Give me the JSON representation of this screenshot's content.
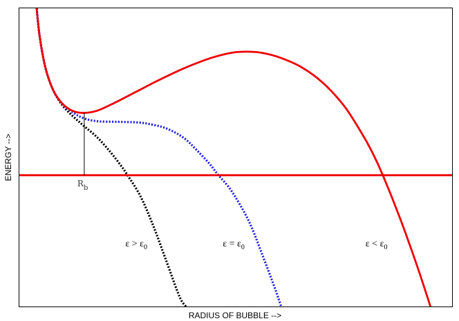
{
  "chart_data": {
    "type": "line",
    "xlabel": "RADIUS OF BUBBLE -->",
    "ylabel": "ENERGY -->",
    "ticks": "none",
    "grid": false,
    "series": [
      {
        "id": "eps_less",
        "name": "ε < ε",
        "name_subscript": "0",
        "color": "#ee0000",
        "style": "solid",
        "points": [
          [
            0.04,
            3.0
          ],
          [
            0.046,
            2.55
          ],
          [
            0.055,
            2.12
          ],
          [
            0.065,
            1.8
          ],
          [
            0.08,
            1.5
          ],
          [
            0.1,
            1.28
          ],
          [
            0.125,
            1.15
          ],
          [
            0.15,
            1.12
          ],
          [
            0.18,
            1.16
          ],
          [
            0.22,
            1.3
          ],
          [
            0.27,
            1.5
          ],
          [
            0.32,
            1.7
          ],
          [
            0.38,
            1.92
          ],
          [
            0.44,
            2.1
          ],
          [
            0.49,
            2.2
          ],
          [
            0.525,
            2.22
          ],
          [
            0.56,
            2.2
          ],
          [
            0.6,
            2.12
          ],
          [
            0.65,
            1.95
          ],
          [
            0.7,
            1.67
          ],
          [
            0.75,
            1.25
          ],
          [
            0.79,
            0.77
          ],
          [
            0.815,
            0.42
          ],
          [
            0.84,
            0.0
          ],
          [
            0.88,
            -0.78
          ],
          [
            0.92,
            -1.65
          ],
          [
            0.95,
            -2.36
          ]
        ]
      },
      {
        "id": "eps_equal",
        "name": "ε = ε",
        "name_subscript": "0",
        "color": "#2222dd",
        "style": "dotted",
        "points": [
          [
            0.04,
            3.0
          ],
          [
            0.046,
            2.55
          ],
          [
            0.055,
            2.12
          ],
          [
            0.065,
            1.8
          ],
          [
            0.08,
            1.5
          ],
          [
            0.1,
            1.28
          ],
          [
            0.125,
            1.12
          ],
          [
            0.15,
            1.02
          ],
          [
            0.18,
            0.97
          ],
          [
            0.22,
            0.96
          ],
          [
            0.27,
            0.95
          ],
          [
            0.3,
            0.92
          ],
          [
            0.34,
            0.84
          ],
          [
            0.38,
            0.67
          ],
          [
            0.41,
            0.45
          ],
          [
            0.44,
            0.2
          ],
          [
            0.46,
            0.0
          ],
          [
            0.49,
            -0.28
          ],
          [
            0.53,
            -0.82
          ],
          [
            0.56,
            -1.4
          ],
          [
            0.59,
            -2.02
          ],
          [
            0.605,
            -2.36
          ]
        ]
      },
      {
        "id": "eps_greater",
        "name": "ε > ε",
        "name_subscript": "0",
        "color": "#000000",
        "style": "dotted",
        "points": [
          [
            0.04,
            3.0
          ],
          [
            0.046,
            2.55
          ],
          [
            0.055,
            2.12
          ],
          [
            0.065,
            1.8
          ],
          [
            0.08,
            1.5
          ],
          [
            0.1,
            1.25
          ],
          [
            0.125,
            1.05
          ],
          [
            0.15,
            0.88
          ],
          [
            0.18,
            0.68
          ],
          [
            0.21,
            0.42
          ],
          [
            0.235,
            0.17
          ],
          [
            0.25,
            0.0
          ],
          [
            0.28,
            -0.38
          ],
          [
            0.31,
            -0.92
          ],
          [
            0.34,
            -1.55
          ],
          [
            0.37,
            -2.18
          ],
          [
            0.385,
            -2.36
          ]
        ]
      },
      {
        "id": "zero_line",
        "name": "",
        "color": "#ee0000",
        "style": "solid",
        "points": [
          [
            0,
            0
          ],
          [
            1,
            0
          ]
        ]
      }
    ],
    "annotations": [
      {
        "id": "rb",
        "text": "R",
        "subscript": "b",
        "x": 0.15,
        "y_top": 1.12,
        "y_bottom": 0.0
      }
    ],
    "curve_labels": [
      {
        "series": "eps_greater",
        "x": 0.245,
        "y": -1.28
      },
      {
        "series": "eps_equal",
        "x": 0.47,
        "y": -1.28
      },
      {
        "series": "eps_less",
        "x": 0.8,
        "y": -1.28
      }
    ],
    "xlim": [
      0,
      1
    ],
    "ylim": [
      -2.36,
      3.0
    ]
  }
}
